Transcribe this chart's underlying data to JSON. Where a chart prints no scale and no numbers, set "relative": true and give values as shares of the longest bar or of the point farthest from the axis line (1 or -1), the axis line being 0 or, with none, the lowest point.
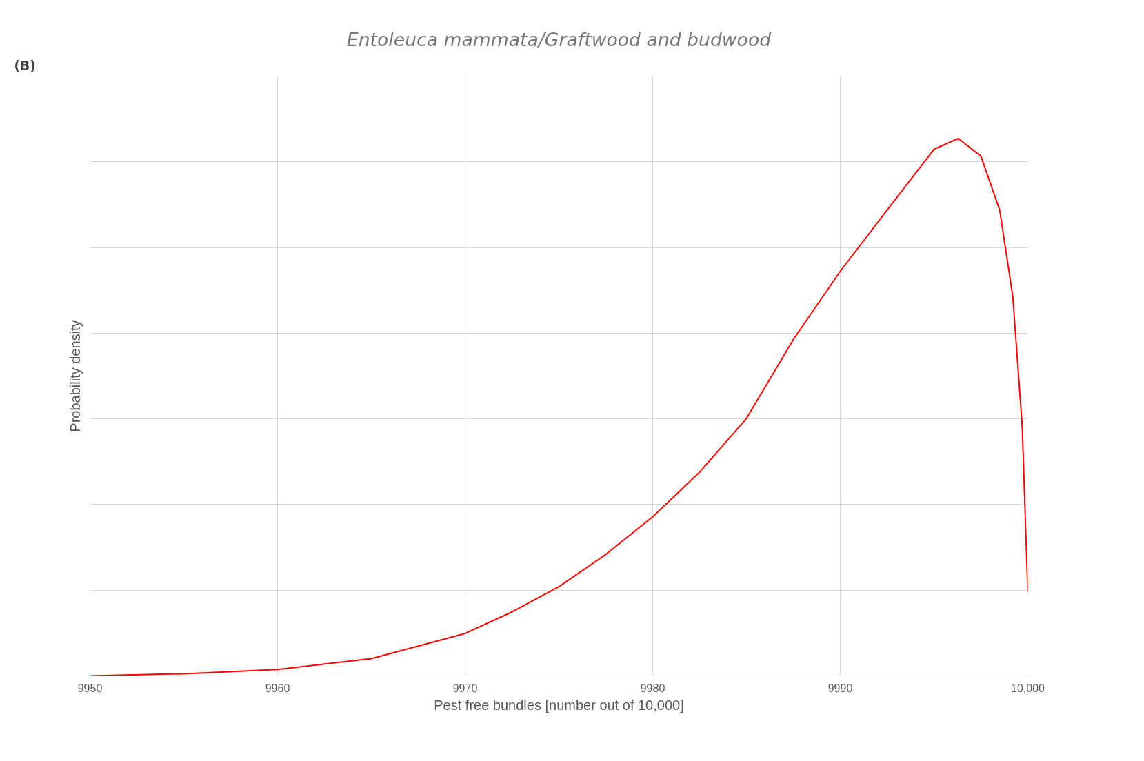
{
  "chart_data": {
    "type": "line",
    "title": "Entoleuca mammata/Graftwood and budwood",
    "xlabel": "Pest free bundles [number out of 10,000]",
    "ylabel": "Probability density",
    "annotations": [
      "(B)"
    ],
    "relative": true,
    "grid": true,
    "marker": "none",
    "line_style": "solid",
    "xlim": [
      9950,
      10000
    ],
    "xticks": [
      9950,
      9960,
      9970,
      9980,
      9990,
      {
        "value": 10000,
        "label": "10,000"
      }
    ],
    "x": [
      9950,
      9955,
      9960,
      9965,
      9970,
      9972.5,
      9975,
      9977.5,
      9980,
      9982.5,
      9985,
      9987.5,
      9990,
      9992.5,
      9995,
      9996.3,
      9997.5,
      9998.5,
      9999.2,
      9999.7,
      10000
    ],
    "series": [
      {
        "color": "#ff0000",
        "values": [
          0,
          0.004,
          0.012,
          0.032,
          0.079,
          0.119,
          0.166,
          0.226,
          0.296,
          0.379,
          0.479,
          0.626,
          0.753,
          0.867,
          0.98,
          1,
          0.967,
          0.867,
          0.706,
          0.466,
          0.156
        ]
      }
    ]
  }
}
